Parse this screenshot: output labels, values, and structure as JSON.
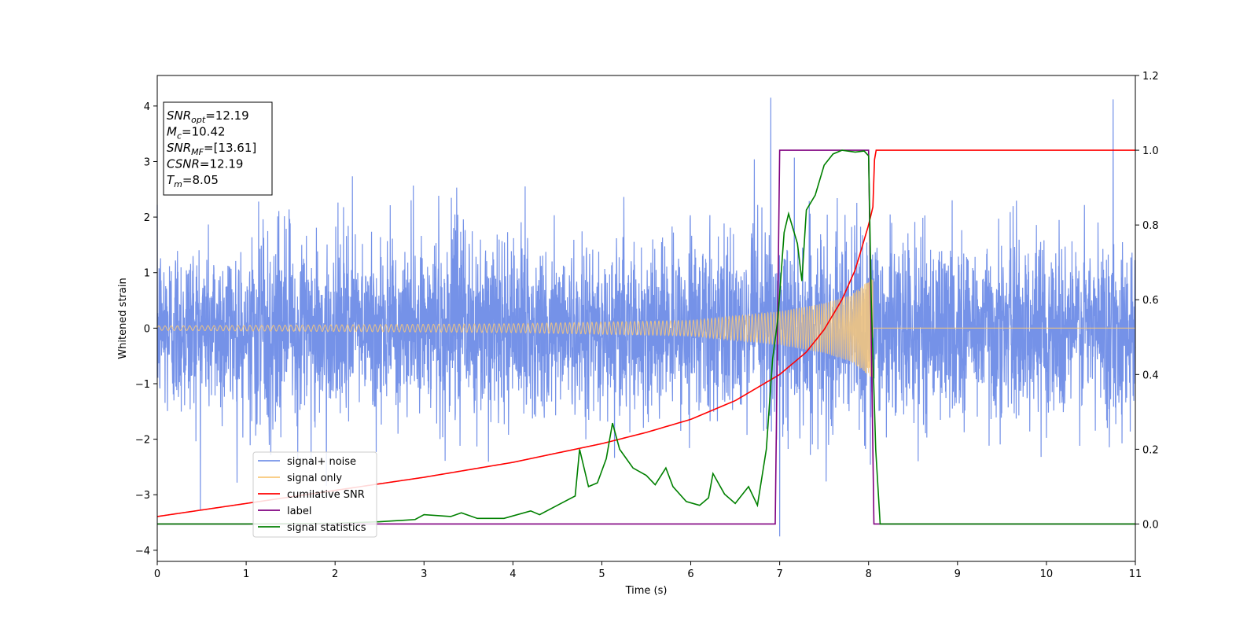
{
  "chart_data": {
    "type": "line",
    "title": "",
    "xlabel": "Time (s)",
    "ylabel": "Whitened strain",
    "xlim": [
      0,
      11
    ],
    "ylim": [
      -4.2,
      4.55
    ],
    "y2lim": [
      -0.1,
      1.2
    ],
    "grid": false,
    "legend_position": "lower-left",
    "x_ticks": [
      0,
      1,
      2,
      3,
      4,
      5,
      6,
      7,
      8,
      9,
      10,
      11
    ],
    "y_ticks": [
      -4,
      -3,
      -2,
      -1,
      0,
      1,
      2,
      3,
      4
    ],
    "y2_ticks": [
      0.0,
      0.2,
      0.4,
      0.6,
      0.8,
      1.0,
      1.2
    ],
    "annotation": {
      "lines": [
        {
          "sym": "SNR",
          "sub": "opt",
          "rest": "=12.19"
        },
        {
          "sym": "M",
          "sub": "c",
          "rest": "=10.42"
        },
        {
          "sym": "SNR",
          "sub": "MF",
          "rest": "=[13.61]"
        },
        {
          "sym": "CSNR",
          "sub": "",
          "rest": "=12.19"
        },
        {
          "sym": "T",
          "sub": "m",
          "rest": "=8.05"
        }
      ]
    },
    "series": [
      {
        "name": "signal+ noise",
        "color": "#7592e8",
        "axis": "left",
        "kind": "noise",
        "sigma": 0.8,
        "max": 4.15,
        "min": -3.75,
        "merger_time": 8.05
      },
      {
        "name": "signal only",
        "color": "#f8c87a",
        "axis": "left",
        "kind": "chirp",
        "merger_time": 8.05,
        "amplitude_at": [
          [
            0,
            0.04
          ],
          [
            4,
            0.08
          ],
          [
            6,
            0.14
          ],
          [
            7,
            0.3
          ],
          [
            7.5,
            0.45
          ],
          [
            7.8,
            0.6
          ],
          [
            8.0,
            0.85
          ],
          [
            8.05,
            0.9
          ]
        ]
      },
      {
        "name": "cumilative SNR",
        "color": "#ff0000",
        "axis": "right",
        "points": [
          [
            0,
            0.02
          ],
          [
            1,
            0.055
          ],
          [
            2,
            0.09
          ],
          [
            3,
            0.125
          ],
          [
            4,
            0.165
          ],
          [
            5,
            0.215
          ],
          [
            5.5,
            0.245
          ],
          [
            6,
            0.28
          ],
          [
            6.5,
            0.33
          ],
          [
            7,
            0.4
          ],
          [
            7.3,
            0.46
          ],
          [
            7.5,
            0.52
          ],
          [
            7.7,
            0.6
          ],
          [
            7.85,
            0.68
          ],
          [
            7.95,
            0.76
          ],
          [
            8.0,
            0.8
          ],
          [
            8.05,
            0.85
          ],
          [
            8.07,
            1.0
          ],
          [
            11,
            1.0
          ]
        ]
      },
      {
        "name": "label",
        "color": "#800080",
        "axis": "right",
        "points": [
          [
            0,
            0
          ],
          [
            6.95,
            0
          ],
          [
            7.0,
            1.0
          ],
          [
            8.0,
            1.0
          ],
          [
            8.06,
            0
          ],
          [
            11,
            0
          ]
        ]
      },
      {
        "name": "signal statistics",
        "color": "#008000",
        "axis": "right",
        "points": [
          [
            0,
            0.0
          ],
          [
            0.5,
            0.0
          ],
          [
            1.0,
            0.0
          ],
          [
            1.5,
            0.001
          ],
          [
            2.0,
            0.002
          ],
          [
            2.5,
            0.006
          ],
          [
            2.9,
            0.012
          ],
          [
            3.0,
            0.025
          ],
          [
            3.3,
            0.02
          ],
          [
            3.42,
            0.03
          ],
          [
            3.6,
            0.015
          ],
          [
            3.9,
            0.015
          ],
          [
            4.2,
            0.035
          ],
          [
            4.3,
            0.025
          ],
          [
            4.5,
            0.05
          ],
          [
            4.7,
            0.075
          ],
          [
            4.75,
            0.2
          ],
          [
            4.85,
            0.1
          ],
          [
            4.95,
            0.11
          ],
          [
            5.05,
            0.175
          ],
          [
            5.12,
            0.27
          ],
          [
            5.2,
            0.2
          ],
          [
            5.35,
            0.15
          ],
          [
            5.5,
            0.13
          ],
          [
            5.6,
            0.105
          ],
          [
            5.72,
            0.15
          ],
          [
            5.8,
            0.1
          ],
          [
            5.95,
            0.06
          ],
          [
            6.1,
            0.05
          ],
          [
            6.2,
            0.07
          ],
          [
            6.25,
            0.135
          ],
          [
            6.38,
            0.08
          ],
          [
            6.5,
            0.055
          ],
          [
            6.65,
            0.1
          ],
          [
            6.75,
            0.05
          ],
          [
            6.85,
            0.2
          ],
          [
            6.92,
            0.44
          ],
          [
            6.98,
            0.55
          ],
          [
            7.05,
            0.78
          ],
          [
            7.1,
            0.83
          ],
          [
            7.2,
            0.75
          ],
          [
            7.25,
            0.65
          ],
          [
            7.3,
            0.84
          ],
          [
            7.4,
            0.88
          ],
          [
            7.5,
            0.96
          ],
          [
            7.6,
            0.99
          ],
          [
            7.7,
            1.0
          ],
          [
            7.85,
            0.995
          ],
          [
            7.95,
            0.998
          ],
          [
            8.0,
            0.985
          ],
          [
            8.03,
            0.6
          ],
          [
            8.08,
            0.2
          ],
          [
            8.13,
            0.0
          ],
          [
            9,
            0.0
          ],
          [
            11,
            0.0
          ]
        ]
      }
    ]
  }
}
